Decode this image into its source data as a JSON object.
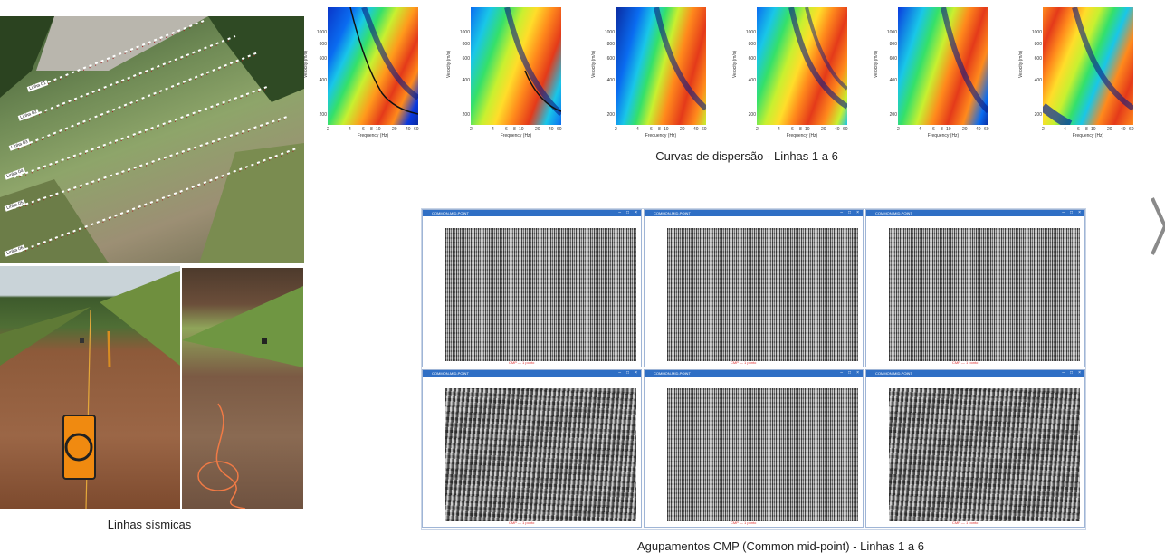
{
  "captions": {
    "seismic_lines": "Linhas sísmicas",
    "dispersion": "Curvas de dispersão - Linhas 1 a 6",
    "cmp": "Agupamentos CMP (Common mid-point) - Linhas 1 a 6"
  },
  "dispersion_axes": {
    "ylabel": "Velocity (m/s)",
    "xlabel": "Frequency (Hz)",
    "yticks": [
      "1000",
      "800",
      "600",
      "400",
      "200"
    ],
    "xticks": [
      "2",
      "4",
      "6",
      "8",
      "10",
      "20",
      "40",
      "60"
    ]
  },
  "line_tags": [
    "Linha 01",
    "Linha 02",
    "Linha 03",
    "Linha 04",
    "Linha 05",
    "Linha 06"
  ],
  "cmp_windows": [
    {
      "title": "COMMON-MID-POINT",
      "footer": "CMP — 1 ponto"
    },
    {
      "title": "COMMON-MID-POINT",
      "footer": "CMP — 1 ponto"
    },
    {
      "title": "COMMON-MID-POINT",
      "footer": "CMP — 1 ponto"
    },
    {
      "title": "COMMON-MID-POINT",
      "footer": "CMP — 1 ponto"
    },
    {
      "title": "COMMON-MID-POINT",
      "footer": "CMP — 1 ponto"
    },
    {
      "title": "COMMON-MID-POINT",
      "footer": "CMP — 1 ponto"
    }
  ],
  "icons": {
    "next": "chevron-right-icon"
  }
}
